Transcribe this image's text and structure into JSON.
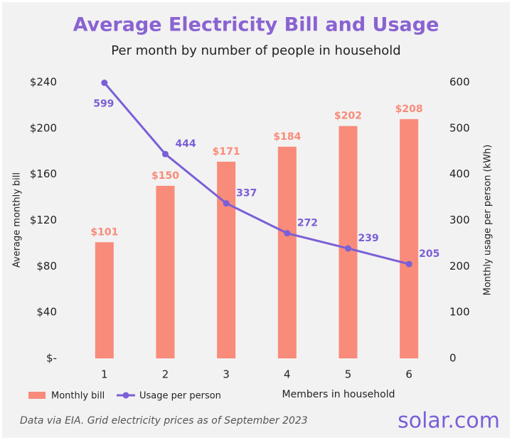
{
  "chart_data": {
    "type": "combo",
    "title": "Average Electricity Bill and Usage",
    "subtitle": "Per month by number of people in household",
    "x_label": "Members in household",
    "y_label": "Average monthly bill",
    "y2_label": "Monthly usage  per person (kWh)",
    "categories": [
      "1",
      "2",
      "3",
      "4",
      "5",
      "6"
    ],
    "series": [
      {
        "name": "Monthly bill",
        "type": "bar",
        "color": "#f98b7a",
        "values": [
          101,
          150,
          171,
          184,
          202,
          208
        ],
        "value_labels": [
          "$101",
          "$150",
          "$171",
          "$184",
          "$202",
          "$208"
        ]
      },
      {
        "name": "Usage per person",
        "type": "line",
        "axis": "y2",
        "color": "#7b5fd6",
        "values": [
          599,
          444,
          337,
          272,
          239,
          205
        ]
      }
    ],
    "ylim": [
      0,
      240
    ],
    "yticks": [
      {
        "value": 0,
        "label": "$-"
      },
      {
        "value": 40,
        "label": "$40"
      },
      {
        "value": 80,
        "label": "$80"
      },
      {
        "value": 120,
        "label": "$120"
      },
      {
        "value": 160,
        "label": "$160"
      },
      {
        "value": 200,
        "label": "$200"
      },
      {
        "value": 240,
        "label": "$240"
      }
    ],
    "y2lim": [
      0,
      600
    ],
    "y2ticks": [
      0,
      100,
      200,
      300,
      400,
      500,
      600
    ],
    "legend": "bottom-left",
    "source": "Data via EIA. Grid electricity prices as of September 2023",
    "logo": "solar.com"
  }
}
